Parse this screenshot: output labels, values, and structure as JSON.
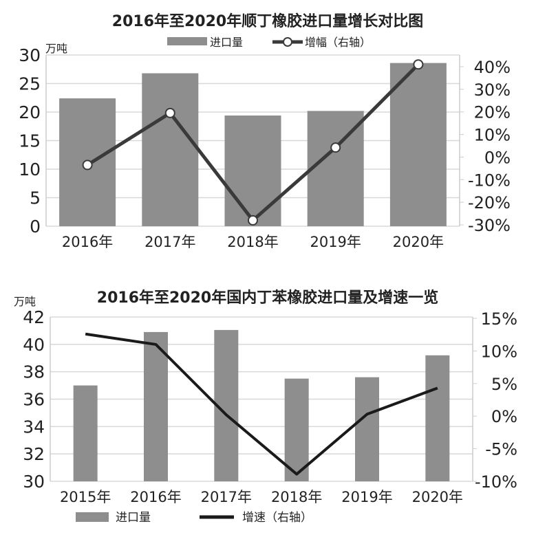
{
  "chart_data": [
    {
      "type": "bar+line",
      "title": "2016年至2020年顺丁橡胶进口量增长对比图",
      "ylabel": "万吨",
      "categories": [
        "2016年",
        "2017年",
        "2018年",
        "2019年",
        "2020年"
      ],
      "series": [
        {
          "name": "进口量",
          "type": "bar",
          "axis": "left",
          "values": [
            22.4,
            26.8,
            19.4,
            20.2,
            28.6
          ],
          "color": "#8e8e8e"
        },
        {
          "name": "增幅（右轴）",
          "type": "line",
          "axis": "right",
          "values": [
            -3.5,
            19.5,
            -28,
            4.2,
            41
          ],
          "color": "#3a3a3a",
          "markers": "circle"
        }
      ],
      "ylim": [
        0,
        30
      ],
      "yticks": [
        "0",
        "5",
        "10",
        "15",
        "20",
        "25",
        "30"
      ],
      "y2lim": [
        -30,
        40
      ],
      "y2ticks": [
        "-30%",
        "-20%",
        "-10%",
        "0%",
        "10%",
        "20%",
        "30%",
        "40%"
      ],
      "grid": true,
      "legend": "top"
    },
    {
      "type": "bar+line",
      "title": "2016年至2020年国内丁苯橡胶进口量及增速一览",
      "ylabel": "万吨",
      "categories": [
        "2015年",
        "2016年",
        "2017年",
        "2018年",
        "2019年",
        "2020年"
      ],
      "series": [
        {
          "name": "进口量",
          "type": "bar",
          "axis": "left",
          "values": [
            37.0,
            40.9,
            41.05,
            37.5,
            37.6,
            39.2
          ],
          "color": "#8e8e8e"
        },
        {
          "name": "增速（右轴）",
          "type": "line",
          "axis": "right",
          "values": [
            12.6,
            11.0,
            0.2,
            -8.9,
            0.3,
            4.3
          ],
          "color": "#1a1a1a"
        }
      ],
      "ylim": [
        30,
        42
      ],
      "yticks": [
        "30",
        "32",
        "34",
        "36",
        "38",
        "40",
        "42"
      ],
      "y2lim": [
        -10,
        15
      ],
      "y2ticks": [
        "-10%",
        "-5%",
        "0%",
        "5%",
        "10%",
        "15%"
      ],
      "grid": true,
      "legend": "bottom"
    }
  ]
}
